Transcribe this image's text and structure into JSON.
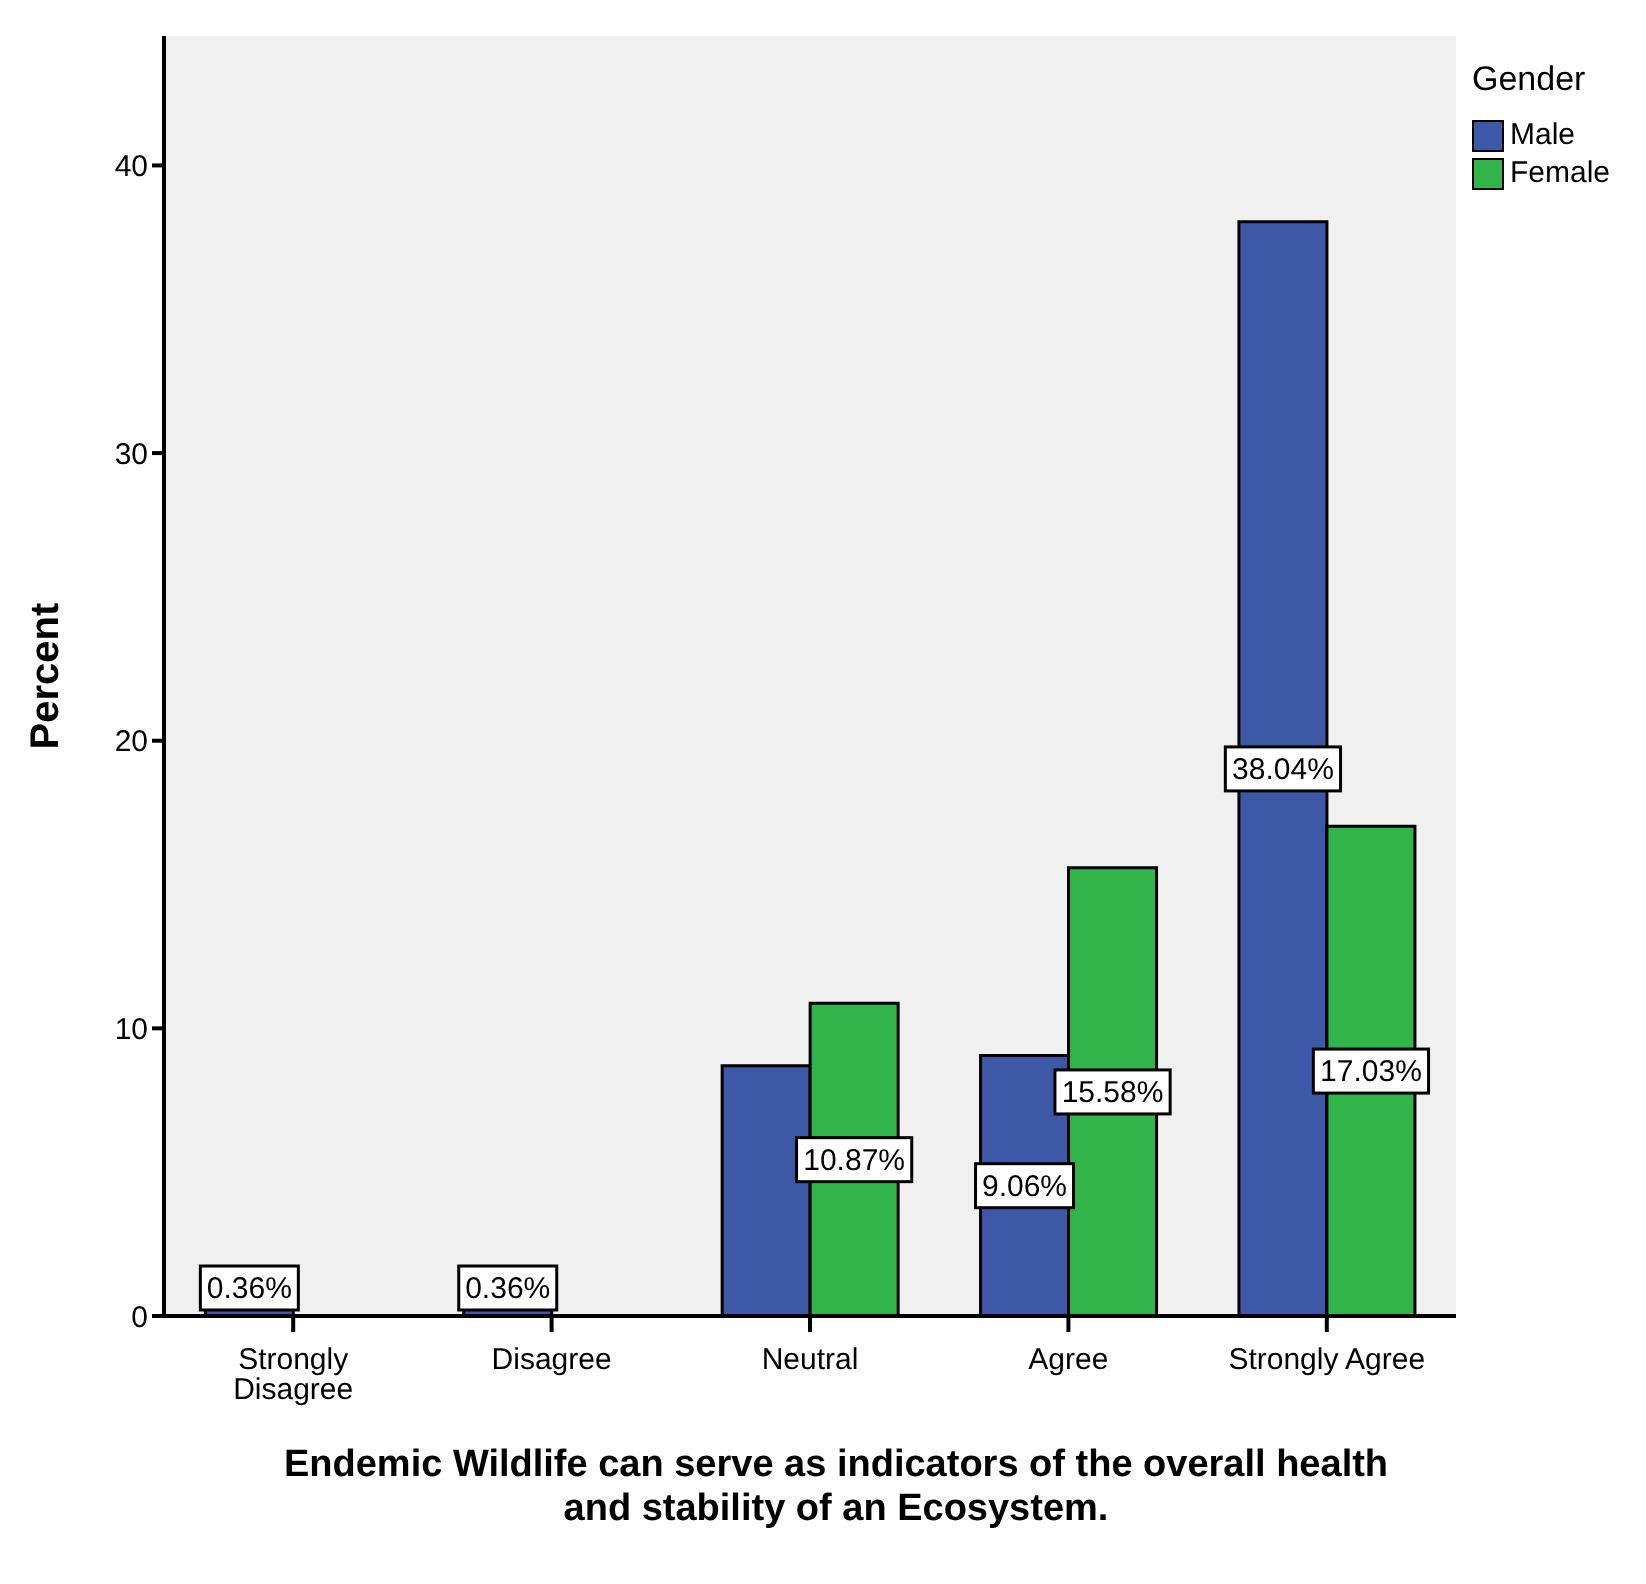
{
  "chart_data": {
    "type": "bar",
    "categories": [
      "Strongly Disagree",
      "Disagree",
      "Neutral",
      "Agree",
      "Strongly Agree"
    ],
    "series": [
      {
        "name": "Male",
        "color": "#3e58a8",
        "values": [
          0.36,
          0.36,
          8.7,
          9.06,
          38.04
        ],
        "value_labels": [
          "0.36%",
          "0.36%",
          null,
          "9.06%",
          "38.04%"
        ]
      },
      {
        "name": "Female",
        "color": "#31b54b",
        "values": [
          0,
          0,
          10.87,
          15.58,
          17.03
        ],
        "value_labels": [
          null,
          null,
          "10.87%",
          "15.58%",
          "17.03%"
        ]
      }
    ],
    "xlabel": "Endemic Wildlife can serve as indicators of the overall health and stability of an Ecosystem.",
    "ylabel": "Percent",
    "legend_title": "Gender",
    "legend": "top right",
    "ylim": [
      0,
      44.5
    ],
    "yticks": [
      0,
      10,
      20,
      30,
      40
    ],
    "grid": false
  }
}
